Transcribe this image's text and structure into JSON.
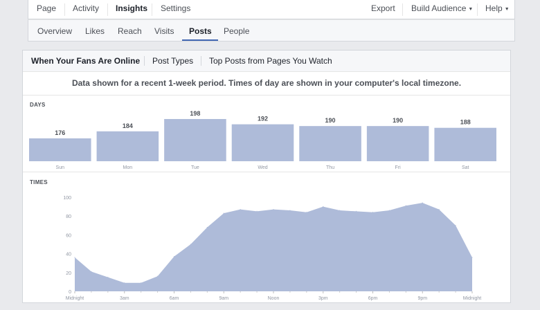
{
  "top_nav": {
    "page": "Page",
    "activity": "Activity",
    "insights": "Insights",
    "settings": "Settings",
    "export": "Export",
    "build_audience": "Build Audience",
    "help": "Help"
  },
  "sub_nav": {
    "overview": "Overview",
    "likes": "Likes",
    "reach": "Reach",
    "visits": "Visits",
    "posts": "Posts",
    "people": "People",
    "active": "Posts"
  },
  "panel_tabs": {
    "fans_online": "When Your Fans Are Online",
    "post_types": "Post Types",
    "top_posts": "Top Posts from Pages You Watch"
  },
  "notice": "Data shown for a recent 1-week period. Times of day are shown in your computer's local timezone.",
  "colors": {
    "bar": "#aebbd9",
    "area": "#aebbd9",
    "active_underline": "#4267b2"
  },
  "chart_data": [
    {
      "type": "bar",
      "title": "DAYS",
      "categories": [
        "Sun",
        "Mon",
        "Tue",
        "Wed",
        "Thu",
        "Fri",
        "Sat"
      ],
      "values": [
        176,
        184,
        198,
        192,
        190,
        190,
        188
      ],
      "value_labels": [
        "176",
        "184",
        "198",
        "192",
        "190",
        "190",
        "188"
      ],
      "grid": false,
      "legend": "none"
    },
    {
      "type": "area",
      "title": "TIMES",
      "x": [
        0,
        1,
        2,
        3,
        4,
        5,
        6,
        7,
        8,
        9,
        10,
        11,
        12,
        13,
        14,
        15,
        16,
        17,
        18,
        19,
        20,
        21,
        22,
        23,
        24
      ],
      "values": [
        36,
        21,
        15,
        9,
        9,
        16,
        37,
        50,
        68,
        83,
        87,
        85,
        87,
        86,
        84,
        90,
        86,
        85,
        84,
        86,
        91,
        94,
        87,
        70,
        36
      ],
      "x_tick_positions": [
        0,
        3,
        6,
        9,
        12,
        15,
        18,
        21,
        24
      ],
      "x_tick_labels": [
        "Midnight",
        "3am",
        "6am",
        "9am",
        "Noon",
        "3pm",
        "6pm",
        "9pm",
        "Midnight"
      ],
      "y_ticks": [
        "0",
        "20",
        "40",
        "60",
        "80",
        "100"
      ],
      "ylim": [
        0,
        100
      ],
      "grid": false,
      "legend": "none"
    }
  ]
}
